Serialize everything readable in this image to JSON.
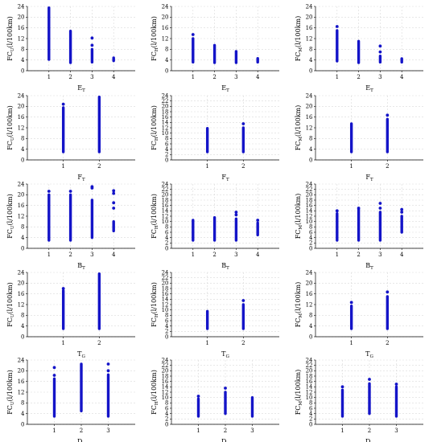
{
  "colors": {
    "marker": "#1414c8",
    "grid": "#d9d9d9",
    "axis": "#000000"
  },
  "chart_data": [
    {
      "type": "scatter",
      "ylabel": {
        "main": "FC",
        "sub": "U",
        "unit": "(l/100km)"
      },
      "xlabel": {
        "main": "E",
        "sub": "T"
      },
      "yticks": [
        "0",
        "4",
        "8",
        "12",
        "16",
        "20",
        "24"
      ],
      "ylim": [
        0,
        24
      ],
      "categories": [
        "1",
        "2",
        "3",
        "4"
      ],
      "series": [
        {
          "values": [
            {
              "x": "1",
              "min": 4.2,
              "max": 23.5,
              "outliers": []
            },
            {
              "x": "2",
              "min": 3.0,
              "max": 14.8,
              "outliers": []
            },
            {
              "x": "3",
              "min": 3.2,
              "max": 8.0,
              "outliers": [
                9.5,
                12.2
              ]
            },
            {
              "x": "4",
              "min": 3.7,
              "max": 4.8,
              "outliers": []
            }
          ]
        }
      ]
    },
    {
      "type": "scatter",
      "ylabel": {
        "main": "FC",
        "sub": "H",
        "unit": "(l/100km)"
      },
      "xlabel": {
        "main": "E",
        "sub": "T"
      },
      "yticks": [
        "0",
        "4",
        "8",
        "12",
        "16",
        "20",
        "24"
      ],
      "ylim": [
        0,
        24
      ],
      "categories": [
        "1",
        "2",
        "3",
        "4"
      ],
      "series": [
        {
          "values": [
            {
              "x": "1",
              "min": 3.2,
              "max": 12.0,
              "outliers": [
                13.5
              ]
            },
            {
              "x": "2",
              "min": 3.0,
              "max": 9.5,
              "outliers": []
            },
            {
              "x": "3",
              "min": 3.0,
              "max": 7.2,
              "outliers": []
            },
            {
              "x": "4",
              "min": 3.2,
              "max": 4.6,
              "outliers": []
            }
          ]
        }
      ]
    },
    {
      "type": "scatter",
      "ylabel": {
        "main": "FC",
        "sub": "M",
        "unit": "(l/100km)"
      },
      "xlabel": {
        "main": "E",
        "sub": "T"
      },
      "yticks": [
        "0",
        "4",
        "8",
        "12",
        "16",
        "20",
        "24"
      ],
      "ylim": [
        0,
        24
      ],
      "categories": [
        "1",
        "2",
        "3",
        "4"
      ],
      "series": [
        {
          "values": [
            {
              "x": "1",
              "min": 3.6,
              "max": 15.0,
              "outliers": [
                16.5
              ]
            },
            {
              "x": "2",
              "min": 3.0,
              "max": 11.0,
              "outliers": []
            },
            {
              "x": "3",
              "min": 3.2,
              "max": 5.5,
              "outliers": [
                7.0,
                9.2
              ]
            },
            {
              "x": "4",
              "min": 3.2,
              "max": 4.5,
              "outliers": []
            }
          ]
        }
      ]
    },
    {
      "type": "scatter",
      "ylabel": {
        "main": "FC",
        "sub": "U",
        "unit": "(l/100km)"
      },
      "xlabel": {
        "main": "F",
        "sub": "T"
      },
      "yticks": [
        "0",
        "4",
        "8",
        "12",
        "16",
        "20",
        "24"
      ],
      "ylim": [
        0,
        24
      ],
      "categories": [
        "1",
        "2"
      ],
      "series": [
        {
          "values": [
            {
              "x": "1",
              "min": 3.0,
              "max": 19.5,
              "outliers": [
                20.8
              ]
            },
            {
              "x": "2",
              "min": 3.0,
              "max": 23.5,
              "outliers": []
            }
          ]
        }
      ]
    },
    {
      "type": "scatter",
      "ylabel": {
        "main": "FC",
        "sub": "H",
        "unit": "(l/100km)"
      },
      "xlabel": {
        "main": "F",
        "sub": "T"
      },
      "yticks": [
        "0",
        "2",
        "4",
        "6",
        "8",
        "10",
        "12",
        "14",
        "16",
        "18",
        "20",
        "22",
        "24"
      ],
      "ylim": [
        0,
        24
      ],
      "categories": [
        "1",
        "2"
      ],
      "series": [
        {
          "values": [
            {
              "x": "1",
              "min": 3.0,
              "max": 11.8,
              "outliers": []
            },
            {
              "x": "2",
              "min": 3.0,
              "max": 12.0,
              "outliers": [
                13.5
              ]
            }
          ]
        }
      ]
    },
    {
      "type": "scatter",
      "ylabel": {
        "main": "FC",
        "sub": "M",
        "unit": "(l/100km)"
      },
      "xlabel": {
        "main": "F",
        "sub": "T"
      },
      "yticks": [
        "0",
        "4",
        "8",
        "12",
        "16",
        "20",
        "24"
      ],
      "ylim": [
        0,
        24
      ],
      "categories": [
        "1",
        "2"
      ],
      "series": [
        {
          "values": [
            {
              "x": "1",
              "min": 3.0,
              "max": 13.5,
              "outliers": []
            },
            {
              "x": "2",
              "min": 3.0,
              "max": 15.2,
              "outliers": [
                16.7
              ]
            }
          ]
        }
      ]
    },
    {
      "type": "scatter",
      "ylabel": {
        "main": "FC",
        "sub": "U",
        "unit": "(l/100km)"
      },
      "xlabel": {
        "main": "B",
        "sub": "T"
      },
      "yticks": [
        "0",
        "4",
        "8",
        "12",
        "16",
        "20",
        "24"
      ],
      "ylim": [
        0,
        24
      ],
      "categories": [
        "1",
        "2",
        "3",
        "4"
      ],
      "series": [
        {
          "values": [
            {
              "x": "1",
              "min": 3.0,
              "max": 20.0,
              "outliers": [
                21.3
              ]
            },
            {
              "x": "2",
              "min": 3.0,
              "max": 20.0,
              "outliers": [
                21.3
              ]
            },
            {
              "x": "3",
              "min": 4.0,
              "max": 18.0,
              "outliers": [
                22.5,
                23.0
              ]
            },
            {
              "x": "4",
              "min": 6.5,
              "max": 10.0,
              "outliers": [
                15.0,
                17.0,
                20.5,
                21.5
              ]
            }
          ]
        }
      ]
    },
    {
      "type": "scatter",
      "ylabel": {
        "main": "FC",
        "sub": "H",
        "unit": "(l/100km)"
      },
      "xlabel": {
        "main": "B",
        "sub": "T"
      },
      "yticks": [
        "0",
        "2",
        "4",
        "6",
        "8",
        "10",
        "12",
        "14",
        "16",
        "18",
        "20",
        "22",
        "24"
      ],
      "ylim": [
        0,
        24
      ],
      "categories": [
        "1",
        "2",
        "3",
        "4"
      ],
      "series": [
        {
          "values": [
            {
              "x": "1",
              "min": 3.0,
              "max": 10.5,
              "outliers": []
            },
            {
              "x": "2",
              "min": 3.0,
              "max": 11.5,
              "outliers": []
            },
            {
              "x": "3",
              "min": 3.0,
              "max": 11.0,
              "outliers": [
                12.5,
                13.5
              ]
            },
            {
              "x": "4",
              "min": 5.0,
              "max": 9.5,
              "outliers": [
                10.5
              ]
            }
          ]
        }
      ]
    },
    {
      "type": "scatter",
      "ylabel": {
        "main": "FC",
        "sub": "M",
        "unit": "(l/100km)"
      },
      "xlabel": {
        "main": "B",
        "sub": "T"
      },
      "yticks": [
        "0",
        "2",
        "4",
        "6",
        "8",
        "10",
        "12",
        "14",
        "16",
        "18",
        "20",
        "22",
        "24"
      ],
      "ylim": [
        0,
        24
      ],
      "categories": [
        "1",
        "2",
        "3",
        "4"
      ],
      "series": [
        {
          "values": [
            {
              "x": "1",
              "min": 3.0,
              "max": 13.0,
              "outliers": [
                14.0
              ]
            },
            {
              "x": "2",
              "min": 3.0,
              "max": 14.5,
              "outliers": [
                15.0
              ]
            },
            {
              "x": "3",
              "min": 3.0,
              "max": 13.5,
              "outliers": [
                15.0,
                16.8
              ]
            },
            {
              "x": "4",
              "min": 6.0,
              "max": 12.0,
              "outliers": [
                13.5,
                14.5
              ]
            }
          ]
        }
      ]
    },
    {
      "type": "scatter",
      "ylabel": {
        "main": "FC",
        "sub": "U",
        "unit": "(l/100km)"
      },
      "xlabel": {
        "main": "T",
        "sub": "G"
      },
      "yticks": [
        "0",
        "4",
        "8",
        "12",
        "16",
        "20",
        "24"
      ],
      "ylim": [
        0,
        24
      ],
      "categories": [
        "1",
        "2"
      ],
      "series": [
        {
          "values": [
            {
              "x": "1",
              "min": 3.0,
              "max": 17.2,
              "outliers": [
                18.0
              ]
            },
            {
              "x": "2",
              "min": 3.0,
              "max": 23.5,
              "outliers": []
            }
          ]
        }
      ]
    },
    {
      "type": "scatter",
      "ylabel": {
        "main": "FC",
        "sub": "H",
        "unit": "(l/100km)"
      },
      "xlabel": {
        "main": "T",
        "sub": "G"
      },
      "yticks": [
        "0",
        "2",
        "4",
        "6",
        "8",
        "10",
        "12",
        "14",
        "16",
        "18",
        "20",
        "22",
        "24"
      ],
      "ylim": [
        0,
        24
      ],
      "categories": [
        "1",
        "2"
      ],
      "series": [
        {
          "values": [
            {
              "x": "1",
              "min": 3.0,
              "max": 9.5,
              "outliers": []
            },
            {
              "x": "2",
              "min": 3.0,
              "max": 12.0,
              "outliers": [
                13.5
              ]
            }
          ]
        }
      ]
    },
    {
      "type": "scatter",
      "ylabel": {
        "main": "FC",
        "sub": "M",
        "unit": "(l/100km)"
      },
      "xlabel": {
        "main": "T",
        "sub": "G"
      },
      "yticks": [
        "0",
        "4",
        "8",
        "12",
        "16",
        "20",
        "24"
      ],
      "ylim": [
        0,
        24
      ],
      "categories": [
        "1",
        "2"
      ],
      "series": [
        {
          "values": [
            {
              "x": "1",
              "min": 3.0,
              "max": 11.5,
              "outliers": [
                12.8
              ]
            },
            {
              "x": "2",
              "min": 3.0,
              "max": 15.0,
              "outliers": [
                16.7
              ]
            }
          ]
        }
      ]
    },
    {
      "type": "scatter",
      "ylabel": {
        "main": "FC",
        "sub": "U",
        "unit": "(l/100km)"
      },
      "xlabel": {
        "main": "D",
        "sub": "T"
      },
      "yticks": [
        "0",
        "4",
        "8",
        "12",
        "16",
        "20",
        "24"
      ],
      "ylim": [
        0,
        24
      ],
      "categories": [
        "1",
        "2",
        "3"
      ],
      "series": [
        {
          "values": [
            {
              "x": "1",
              "min": 3.0,
              "max": 17.0,
              "outliers": [
                18.3,
                21.2
              ]
            },
            {
              "x": "2",
              "min": 5.0,
              "max": 22.5,
              "outliers": []
            },
            {
              "x": "3",
              "min": 3.0,
              "max": 18.5,
              "outliers": [
                20.0,
                22.5
              ]
            }
          ]
        }
      ]
    },
    {
      "type": "scatter",
      "ylabel": {
        "main": "FC",
        "sub": "H",
        "unit": "(l/100km)"
      },
      "xlabel": {
        "main": "D",
        "sub": "T"
      },
      "yticks": [
        "0",
        "2",
        "4",
        "6",
        "8",
        "10",
        "12",
        "14",
        "16",
        "18",
        "20",
        "22",
        "24"
      ],
      "ylim": [
        0,
        24
      ],
      "categories": [
        "1",
        "2",
        "3"
      ],
      "series": [
        {
          "values": [
            {
              "x": "1",
              "min": 3.0,
              "max": 9.5,
              "outliers": [
                10.5
              ]
            },
            {
              "x": "2",
              "min": 4.0,
              "max": 12.0,
              "outliers": [
                13.5
              ]
            },
            {
              "x": "3",
              "min": 3.0,
              "max": 10.0,
              "outliers": []
            }
          ]
        }
      ]
    },
    {
      "type": "scatter",
      "ylabel": {
        "main": "FC",
        "sub": "M",
        "unit": "(l/100km)"
      },
      "xlabel": {
        "main": "D",
        "sub": "T"
      },
      "yticks": [
        "0",
        "2",
        "4",
        "6",
        "8",
        "10",
        "12",
        "14",
        "16",
        "18",
        "20",
        "22",
        "24"
      ],
      "ylim": [
        0,
        24
      ],
      "categories": [
        "1",
        "2",
        "3"
      ],
      "series": [
        {
          "values": [
            {
              "x": "1",
              "min": 3.0,
              "max": 12.8,
              "outliers": [
                14.0
              ]
            },
            {
              "x": "2",
              "min": 4.0,
              "max": 15.2,
              "outliers": [
                16.8
              ]
            },
            {
              "x": "3",
              "min": 3.0,
              "max": 14.0,
              "outliers": [
                15.0
              ]
            }
          ]
        }
      ]
    }
  ]
}
